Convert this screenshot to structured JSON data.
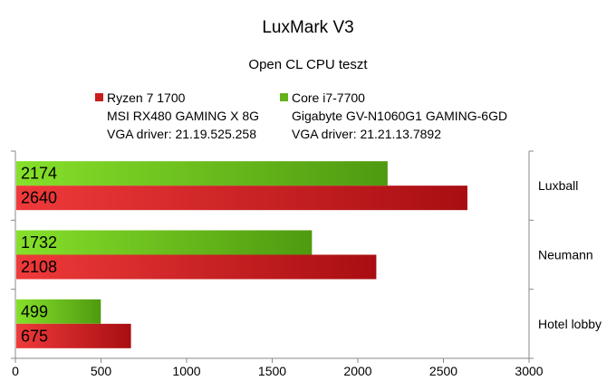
{
  "chart_data": {
    "type": "bar",
    "orientation": "horizontal",
    "title": "LuxMark V3",
    "subtitle": "Open CL CPU teszt",
    "categories": [
      "Luxball",
      "Neumann",
      "Hotel lobby"
    ],
    "series": [
      {
        "name": "Ryzen 7 1700",
        "legend_lines": [
          "MSI RX480 GAMING X 8G",
          "VGA driver: 21.19.525.258"
        ],
        "color": "#c81e1e",
        "values": [
          2640,
          2108,
          675
        ]
      },
      {
        "name": "Core i7-7700",
        "legend_lines": [
          "Gigabyte GV-N1060G1 GAMING-6GD",
          "VGA driver: 21.21.13.7892"
        ],
        "color": "#66b21a",
        "values": [
          2174,
          1732,
          499
        ]
      }
    ],
    "xlim": [
      0,
      3000
    ],
    "xticks": [
      "0",
      "500",
      "1000",
      "1500",
      "2000",
      "2500",
      "3000"
    ],
    "legend_position": "top",
    "grid": false
  }
}
